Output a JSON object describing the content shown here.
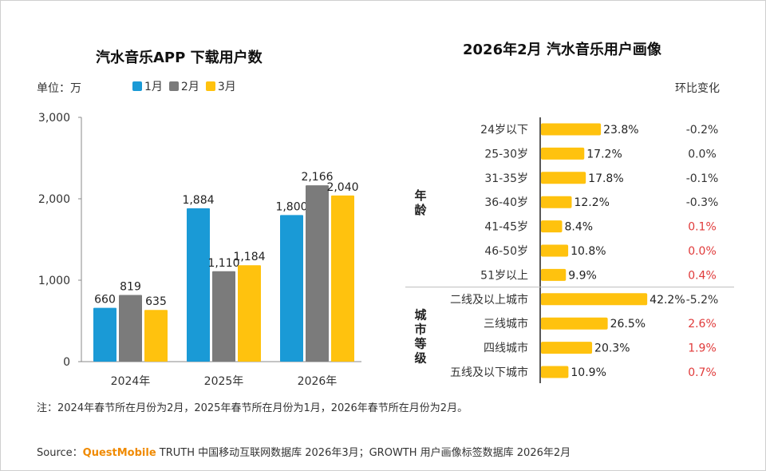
{
  "left": {
    "title": "汽水音乐APP 下载用户数",
    "unit": "单位：万",
    "legend": [
      {
        "label": "1月",
        "color": "#1a9ad6"
      },
      {
        "label": "2月",
        "color": "#7b7b7b"
      },
      {
        "label": "3月",
        "color": "#ffc20e"
      }
    ]
  },
  "right": {
    "title": "2026年2月 汽水音乐用户画像",
    "ratio_header": "环比变化",
    "group_labels": [
      "年龄",
      "城市等级"
    ]
  },
  "note": "注：2024年春节所在月份为2月，2025年春节所在月份为1月，2026年春节所在月份为2月。",
  "source": {
    "prefix": "Source：",
    "brand": "QuestMobile",
    "rest": "TRUTH 中国移动互联网数据库 2026年3月；GROWTH 用户画像标签数据库 2026年2月"
  },
  "colors": {
    "positive": "#e03a3a",
    "neutral": "#333333",
    "bar": "#ffc20e"
  },
  "chart_data": [
    {
      "type": "bar",
      "title": "汽水音乐APP 下载用户数",
      "categories": [
        "2024年",
        "2025年",
        "2026年"
      ],
      "series": [
        {
          "name": "1月",
          "values": [
            660,
            1884,
            1800
          ]
        },
        {
          "name": "2月",
          "values": [
            819,
            1110,
            2166
          ]
        },
        {
          "name": "3月",
          "values": [
            635,
            1184,
            2040
          ]
        }
      ],
      "ylim": [
        0,
        3000
      ],
      "yticks": [
        "0",
        "1,000",
        "2,000",
        "3,000"
      ],
      "value_labels": [
        [
          "660",
          "819",
          "635"
        ],
        [
          "1,884",
          "1,110",
          "1,184"
        ],
        [
          "1,800",
          "2,166",
          "2,040"
        ]
      ],
      "legend_position": "top-left",
      "grid": false
    },
    {
      "type": "bar",
      "orientation": "horizontal",
      "title": "2026年2月 汽水音乐用户画像",
      "groups": [
        {
          "name": "年龄",
          "categories": [
            "24岁以下",
            "25-30岁",
            "31-35岁",
            "36-40岁",
            "41-45岁",
            "46-50岁",
            "51岁以上"
          ],
          "values": [
            23.8,
            17.2,
            17.8,
            12.2,
            8.4,
            10.8,
            9.9
          ],
          "value_labels": [
            "23.8%",
            "17.2%",
            "17.8%",
            "12.2%",
            "8.4%",
            "10.8%",
            "9.9%"
          ],
          "change": [
            "-0.2%",
            "0.0%",
            "-0.1%",
            "-0.3%",
            "0.1%",
            "0.0%",
            "0.4%"
          ],
          "change_positive": [
            false,
            false,
            false,
            false,
            true,
            true,
            true
          ]
        },
        {
          "name": "城市等级",
          "categories": [
            "二线及以上城市",
            "三线城市",
            "四线城市",
            "五线及以下城市"
          ],
          "values": [
            42.2,
            26.5,
            20.3,
            10.9
          ],
          "value_labels": [
            "42.2%",
            "26.5%",
            "20.3%",
            "10.9%"
          ],
          "change": [
            "-5.2%",
            "2.6%",
            "1.9%",
            "0.7%"
          ],
          "change_positive": [
            false,
            true,
            true,
            true
          ]
        }
      ]
    }
  ]
}
